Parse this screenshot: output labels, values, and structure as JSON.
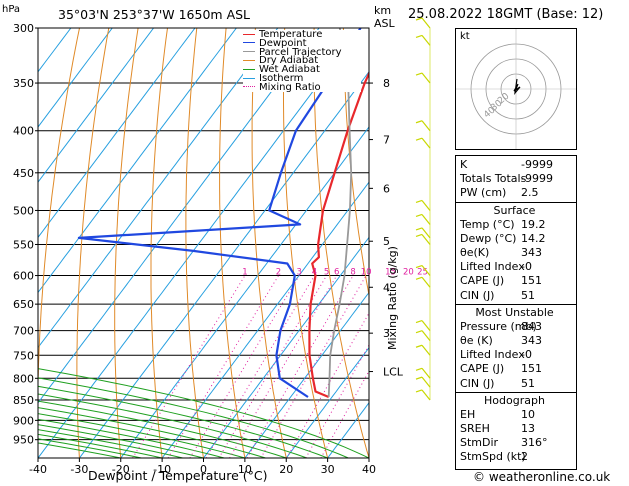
{
  "header": {
    "location": "35°03'N 253°37'W 1650m ASL",
    "datetime": "25.08.2022 18GMT (Base: 12)",
    "hpa_label": "hPa",
    "km_label": "km",
    "asl_label": "ASL"
  },
  "chart_data": {
    "type": "line",
    "title": "35°03'N 253°37'W 1650m ASL",
    "xlabel": "Dewpoint / Temperature (°C)",
    "ylabel": "hPa",
    "secondary_ylabel": "Mixing Ratio (g/kg)",
    "x_ticks": [
      -40,
      -30,
      -20,
      -10,
      0,
      10,
      20,
      30,
      40
    ],
    "y_ticks": [
      300,
      350,
      400,
      450,
      500,
      550,
      600,
      650,
      700,
      750,
      800,
      850,
      900,
      950
    ],
    "xlim": [
      -40,
      40
    ],
    "ylim": [
      1000,
      300
    ],
    "y_scale": "log",
    "km_ticks": [
      {
        "label": "8",
        "p": 350
      },
      {
        "label": "7",
        "p": 410
      },
      {
        "label": "6",
        "p": 470
      },
      {
        "label": "5",
        "p": 545
      },
      {
        "label": "4",
        "p": 620
      },
      {
        "label": "3",
        "p": 705
      },
      {
        "label": "LCL",
        "p": 785
      }
    ],
    "mixing_ratio_labels": [
      "1",
      "2",
      "3",
      "4",
      "5",
      "6",
      "8",
      "10",
      "15",
      "20",
      "25"
    ],
    "legend": [
      "Temperature",
      "Dewpoint",
      "Parcel Trajectory",
      "Dry Adiabat",
      "Wet Adiabat",
      "Isotherm",
      "Mixing Ratio"
    ],
    "legend_position": "top",
    "series": [
      {
        "name": "Temperature",
        "color": "#e8282c",
        "points": [
          [
            -33,
            300
          ],
          [
            -29,
            350
          ],
          [
            -24.5,
            400
          ],
          [
            -20,
            450
          ],
          [
            -16,
            500
          ],
          [
            -11,
            550
          ],
          [
            -8.5,
            570
          ],
          [
            -9,
            580
          ],
          [
            -6,
            600
          ],
          [
            -2,
            650
          ],
          [
            2.5,
            700
          ],
          [
            7,
            750
          ],
          [
            12,
            800
          ],
          [
            15,
            830
          ],
          [
            19.2,
            843
          ]
        ]
      },
      {
        "name": "Dewpoint",
        "color": "#2048e0",
        "points": [
          [
            -40,
            300
          ],
          [
            -38,
            350
          ],
          [
            -37,
            400
          ],
          [
            -33,
            450
          ],
          [
            -29,
            500
          ],
          [
            -19,
            520
          ],
          [
            -70,
            540
          ],
          [
            -40,
            560
          ],
          [
            -15,
            580
          ],
          [
            -11,
            600
          ],
          [
            -7,
            650
          ],
          [
            -4.5,
            700
          ],
          [
            -1,
            750
          ],
          [
            4,
            800
          ],
          [
            14.2,
            843
          ]
        ]
      },
      {
        "name": "Parcel Trajectory",
        "color": "#999999",
        "points": [
          [
            19.2,
            843
          ],
          [
            16,
            800
          ],
          [
            12,
            750
          ],
          [
            8.5,
            700
          ],
          [
            5,
            650
          ],
          [
            1,
            600
          ],
          [
            -4,
            550
          ],
          [
            -9.5,
            500
          ],
          [
            -16,
            450
          ],
          [
            -24,
            400
          ],
          [
            -33,
            350
          ],
          [
            -45,
            300
          ]
        ]
      }
    ]
  },
  "hodograph": {
    "label": "kt",
    "ring_labels": [
      "20",
      "30",
      "40"
    ]
  },
  "indices": [
    {
      "label": "K",
      "value": "-9999"
    },
    {
      "label": "Totals Totals",
      "value": "-9999"
    },
    {
      "label": "PW (cm)",
      "value": "2.5"
    }
  ],
  "surface": {
    "title": "Surface",
    "rows": [
      {
        "label": "Temp (°C)",
        "value": "19.2"
      },
      {
        "label": "Dewp (°C)",
        "value": "14.2"
      },
      {
        "label": "θe(K)",
        "value": "343"
      },
      {
        "label": "Lifted Index",
        "value": "-0"
      },
      {
        "label": "CAPE (J)",
        "value": "151"
      },
      {
        "label": "CIN (J)",
        "value": "51"
      }
    ]
  },
  "most_unstable": {
    "title": "Most Unstable",
    "rows": [
      {
        "label": "Pressure (mb)",
        "value": "843"
      },
      {
        "label": "θe (K)",
        "value": "343"
      },
      {
        "label": "Lifted Index",
        "value": "-0"
      },
      {
        "label": "CAPE (J)",
        "value": "151"
      },
      {
        "label": "CIN (J)",
        "value": "51"
      }
    ]
  },
  "hodograph_table": {
    "title": "Hodograph",
    "rows": [
      {
        "label": "EH",
        "value": "10"
      },
      {
        "label": "SREH",
        "value": "13"
      },
      {
        "label": "StmDir",
        "value": "316°"
      },
      {
        "label": "StmSpd (kt)",
        "value": "2"
      }
    ]
  },
  "copyright": "© weatheronline.co.uk",
  "colors": {
    "temperature": "#e8282c",
    "dewpoint": "#2048e0",
    "parcel": "#999999",
    "dry_adiabat": "#e08a28",
    "wet_adiabat": "#20a020",
    "isotherm": "#28a0e0",
    "mixing_ratio": "#e020a0",
    "wind_barb": "#c8d800"
  }
}
